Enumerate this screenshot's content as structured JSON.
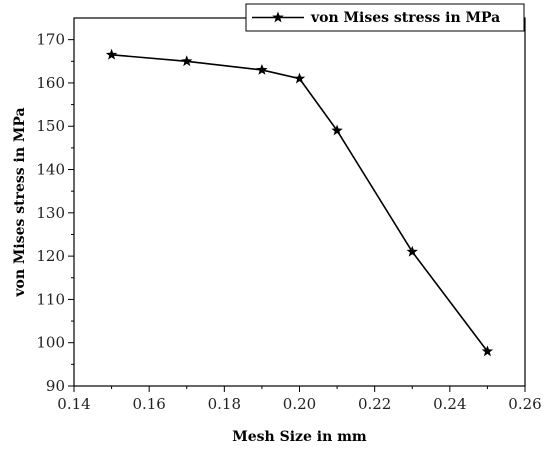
{
  "chart_data": {
    "type": "line",
    "title": "",
    "xlabel": "Mesh Size in mm",
    "ylabel": "von Mises stress in MPa",
    "xlim": [
      0.14,
      0.26
    ],
    "ylim": [
      90,
      175
    ],
    "x_ticks": [
      "0.14",
      "0.16",
      "0.18",
      "0.20",
      "0.22",
      "0.24",
      "0.26"
    ],
    "y_ticks": [
      "90",
      "100",
      "110",
      "120",
      "130",
      "140",
      "150",
      "160",
      "170"
    ],
    "grid": false,
    "legend_position": "top-right",
    "marker": "star",
    "line_color": "#000000",
    "series": [
      {
        "name": "von Mises stress in MPa",
        "x": [
          0.15,
          0.17,
          0.19,
          0.2,
          0.21,
          0.23,
          0.25
        ],
        "y": [
          166.5,
          165,
          163,
          161,
          149,
          121,
          98
        ]
      }
    ]
  }
}
